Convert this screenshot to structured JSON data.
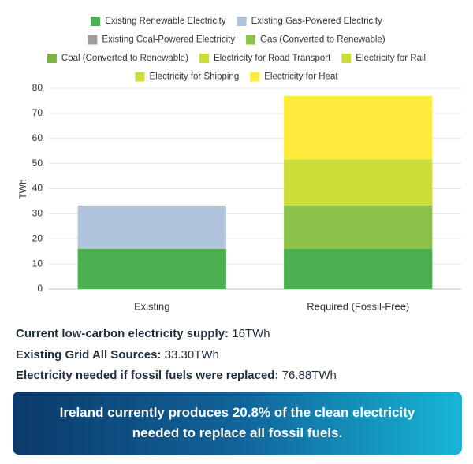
{
  "chart_data": {
    "type": "stacked-bar",
    "y_label": "TWh",
    "categories": [
      "Existing",
      "Required (Fossil-Free)"
    ],
    "ylim": [
      0,
      80
    ],
    "yticks": [
      0,
      10,
      20,
      30,
      40,
      50,
      60,
      70,
      80
    ],
    "grid": true,
    "series": [
      {
        "name": "Existing Renewable Electricity",
        "color": "#4caf50",
        "values": [
          16,
          16
        ]
      },
      {
        "name": "Existing Gas-Powered Electricity",
        "color": "#b0c4de",
        "values": [
          16.9,
          0
        ]
      },
      {
        "name": "Existing Coal-Powered Electricity",
        "color": "#9e9e9e",
        "values": [
          0.4,
          0
        ]
      },
      {
        "name": "Gas (Converted to Renewable)",
        "color": "#8bc34a",
        "values": [
          0,
          16.9
        ]
      },
      {
        "name": "Coal (Converted to Renewable)",
        "color": "#7cb342",
        "values": [
          0,
          0.4
        ]
      },
      {
        "name": "Electricity for Road Transport",
        "color": "#cddc39",
        "values": [
          0,
          17
        ]
      },
      {
        "name": "Electricity for Rail",
        "color": "#cddc39",
        "values": [
          0,
          1
        ]
      },
      {
        "name": "Electricity for Shipping",
        "color": "#cddc39",
        "values": [
          0,
          0.4
        ]
      },
      {
        "name": "Electricity for Heat",
        "color": "#ffeb3b",
        "values": [
          0,
          25.18
        ]
      }
    ]
  },
  "summary": [
    {
      "label": "Current low-carbon electricity supply:",
      "value": "16TWh"
    },
    {
      "label": "Existing Grid All Sources:",
      "value": "33.30TWh"
    },
    {
      "label": "Electricity needed if fossil fuels were replaced:",
      "value": "76.88TWh"
    }
  ],
  "banner": "Ireland currently produces 20.8% of the clean electricity needed to replace all fossil fuels."
}
